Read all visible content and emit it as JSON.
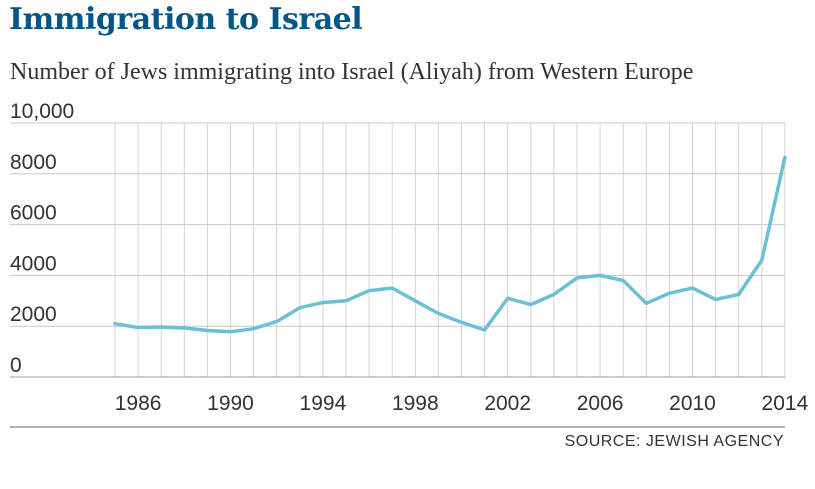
{
  "chart_data": {
    "type": "line",
    "title": "Immigration to Israel",
    "subtitle": "Number of Jews immigrating into Israel (Aliyah) from Western Europe",
    "source": "SOURCE: JEWISH AGENCY",
    "xlabel": "",
    "ylabel": "",
    "ylim": [
      0,
      10000
    ],
    "xlim": [
      1985,
      2014
    ],
    "grid": true,
    "series_color": "#6bc0d6",
    "yticks": [
      0,
      2000,
      4000,
      6000,
      8000,
      10000
    ],
    "ytick_labels": [
      "0",
      "2000",
      "4000",
      "6000",
      "8000",
      "10,000"
    ],
    "xticks": [
      1986,
      1990,
      1994,
      1998,
      2002,
      2006,
      2010,
      2014
    ],
    "xtick_labels": [
      "1986",
      "1990",
      "1994",
      "1998",
      "2002",
      "2006",
      "2010",
      "2014"
    ],
    "series": [
      {
        "name": "Western Europe",
        "x": [
          1985,
          1986,
          1987,
          1988,
          1989,
          1990,
          1991,
          1992,
          1993,
          1994,
          1995,
          1996,
          1997,
          1998,
          1999,
          2000,
          2001,
          2002,
          2003,
          2004,
          2005,
          2006,
          2007,
          2008,
          2009,
          2010,
          2011,
          2012,
          2013,
          2014
        ],
        "values": [
          2100,
          1950,
          1970,
          1930,
          1830,
          1780,
          1900,
          2180,
          2730,
          2930,
          3000,
          3400,
          3500,
          3000,
          2500,
          2150,
          1850,
          3100,
          2850,
          3250,
          3900,
          4000,
          3800,
          2900,
          3300,
          3500,
          3050,
          3250,
          4600,
          8650
        ]
      }
    ]
  }
}
